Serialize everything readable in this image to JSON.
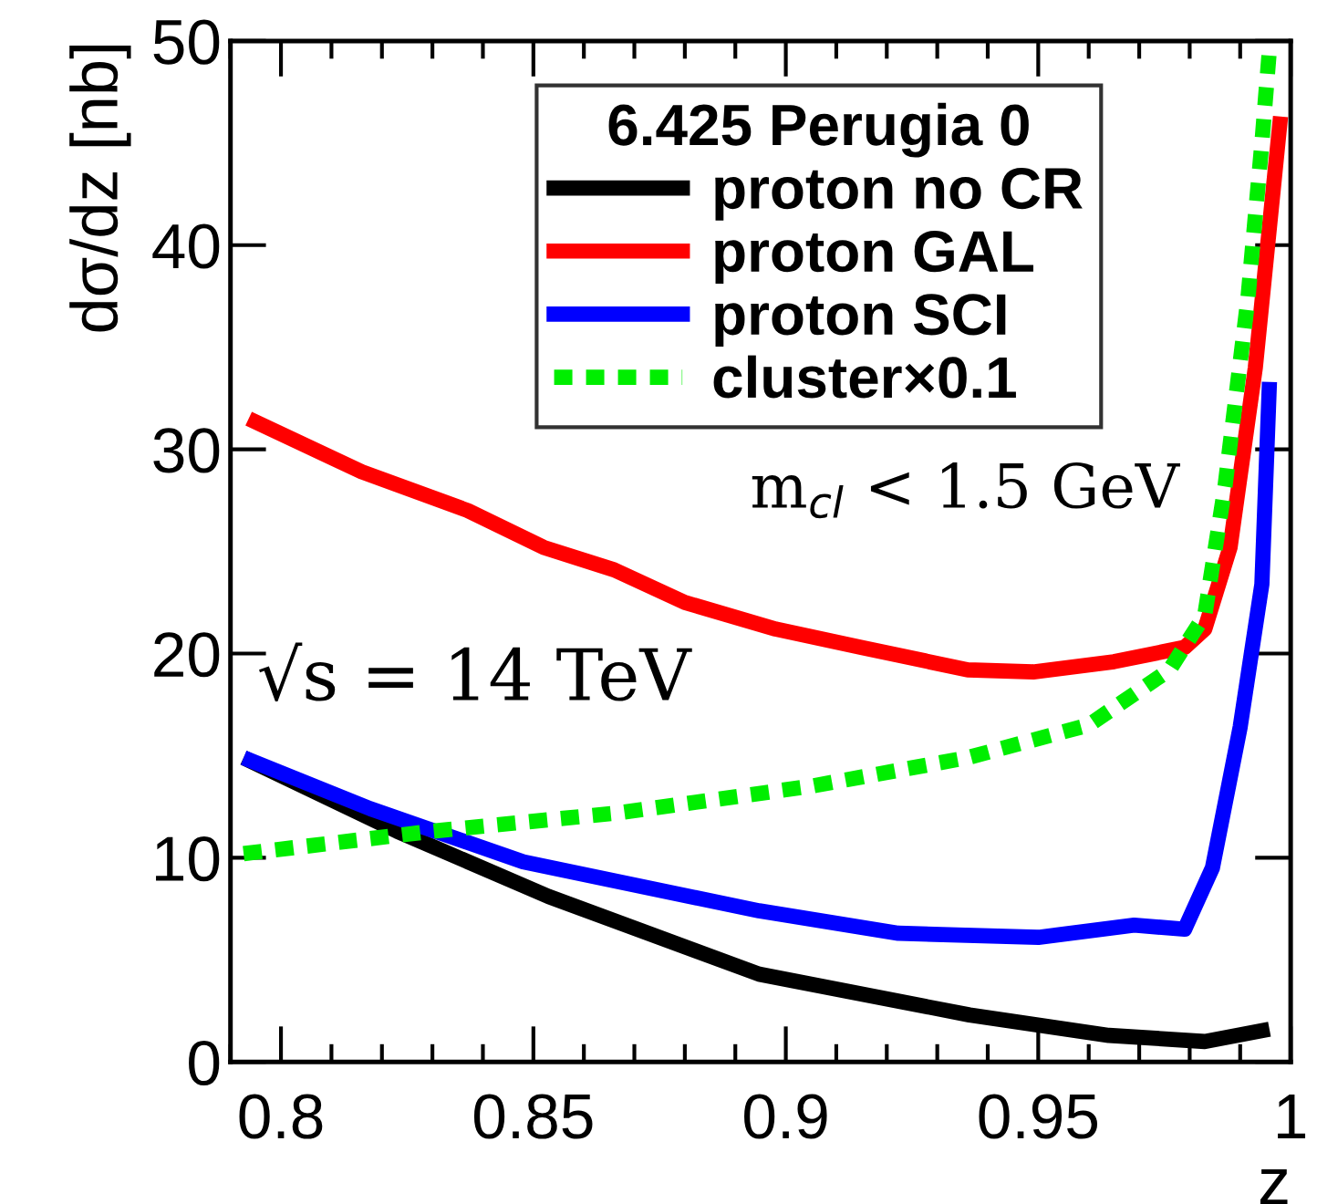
{
  "chart_data": {
    "type": "line",
    "xlabel": "z",
    "ylabel": "dσ/dz [nb]",
    "legend_title": "6.425 Perugia 0",
    "xlim": [
      0.79,
      1.0
    ],
    "ylim": [
      0,
      50
    ],
    "xticks": [
      0.8,
      0.85,
      0.9,
      0.95,
      1
    ],
    "yticks": [
      0,
      10,
      20,
      30,
      40,
      50
    ],
    "grid": false,
    "legend": "top",
    "marker": "none",
    "series": [
      {
        "name": "proton no CR",
        "color": "#000000",
        "line_style": "solid",
        "x": [
          0.7926,
          0.823,
          0.853,
          0.8947,
          0.9364,
          0.964,
          0.983,
          0.9958
        ],
        "values": [
          14.9,
          11.3,
          8.1,
          4.3,
          2.3,
          1.3,
          1.0,
          1.6
        ]
      },
      {
        "name": "proton GAL",
        "color": "#ff0000",
        "line_style": "solid",
        "x": [
          0.7936,
          0.816,
          0.837,
          0.852,
          0.866,
          0.88,
          0.898,
          0.915,
          0.936,
          0.949,
          0.965,
          0.979,
          0.983,
          0.988,
          0.993,
          0.998
        ],
        "values": [
          31.5,
          28.9,
          27,
          25.2,
          24.1,
          22.5,
          21.2,
          20.3,
          19.2,
          19.1,
          19.6,
          20.3,
          21.2,
          25.2,
          34,
          46.3
        ]
      },
      {
        "name": "proton SCI",
        "color": "#0000ff",
        "line_style": "solid",
        "x": [
          0.7926,
          0.8177,
          0.848,
          0.8947,
          0.9223,
          0.95,
          0.969,
          0.979,
          0.9845,
          0.99,
          0.9943,
          0.9958
        ],
        "values": [
          14.9,
          12.4,
          9.8,
          7.4,
          6.3,
          6.1,
          6.7,
          6.5,
          9.5,
          16.4,
          23.4,
          33.3
        ]
      },
      {
        "name": "cluster×0.1",
        "color": "#00ee00",
        "line_style": "dotted",
        "x": [
          0.7926,
          0.83,
          0.867,
          0.905,
          0.936,
          0.96,
          0.976,
          0.983,
          0.987,
          0.9915,
          0.9943,
          0.9958
        ],
        "values": [
          10.2,
          11.3,
          12.2,
          13.5,
          14.9,
          16.5,
          19.2,
          21.9,
          28.2,
          37.3,
          45,
          49.6
        ]
      }
    ],
    "annotations": [
      "√s = 14 TeV",
      "m$_{cl}$ < 1.5 GeV"
    ]
  }
}
